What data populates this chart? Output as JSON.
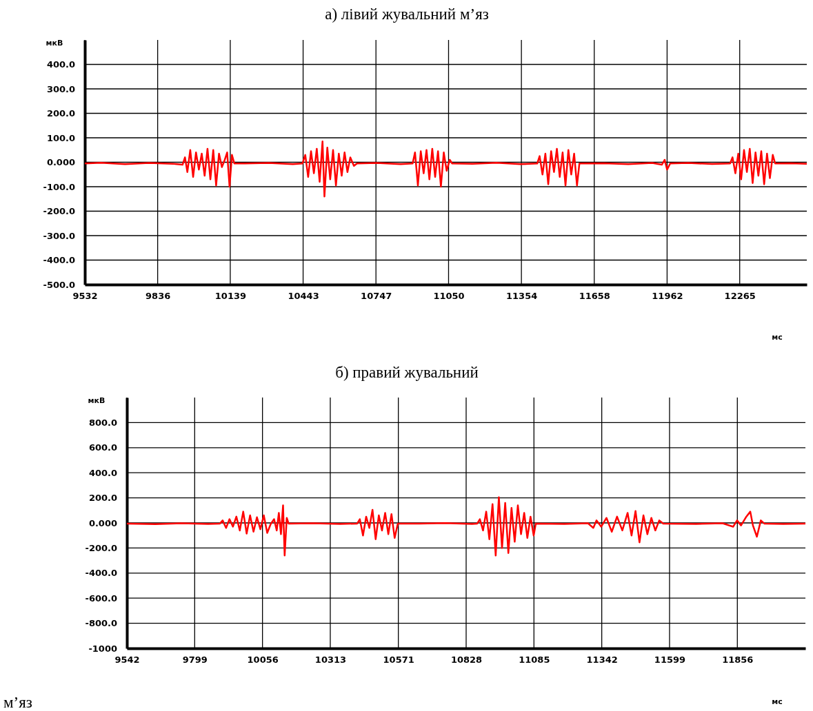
{
  "chart_data": [
    {
      "type": "line",
      "title": "а) лівий жувальний м’яз",
      "xlabel": "мс",
      "ylabel": "мкВ",
      "xlim": [
        9532,
        12545
      ],
      "ylim": [
        -500,
        500
      ],
      "xticks": [
        9532,
        9836,
        10139,
        10443,
        10747,
        11050,
        11354,
        11658,
        11962,
        12265
      ],
      "yticks": [
        {
          "value": 400,
          "label": "400.0"
        },
        {
          "value": 300,
          "label": "300.0"
        },
        {
          "value": 200,
          "label": "200.0"
        },
        {
          "value": 100,
          "label": "100.0"
        },
        {
          "value": 0,
          "label": "0.000"
        },
        {
          "value": -100,
          "label": "-100.0"
        },
        {
          "value": -200,
          "label": "-200.0"
        },
        {
          "value": -300,
          "label": "-300.0"
        },
        {
          "value": -400,
          "label": "-400.0"
        },
        {
          "value": -500,
          "label": "-500.0"
        }
      ],
      "grid": true,
      "series": [
        {
          "color": "#ff0000",
          "x": [
            9532,
            9600,
            9700,
            9800,
            9900,
            9940,
            9950,
            9960,
            9972,
            9984,
            9996,
            10008,
            10020,
            10032,
            10044,
            10056,
            10068,
            10080,
            10092,
            10104,
            10116,
            10126,
            10136,
            10146,
            10156,
            10200,
            10300,
            10400,
            10440,
            10452,
            10464,
            10476,
            10488,
            10500,
            10512,
            10524,
            10532,
            10544,
            10556,
            10568,
            10580,
            10592,
            10604,
            10616,
            10628,
            10640,
            10655,
            10668,
            10750,
            10850,
            10900,
            10910,
            10922,
            10934,
            10946,
            10958,
            10970,
            10982,
            10994,
            11006,
            11018,
            11030,
            11042,
            11055,
            11065,
            11150,
            11250,
            11350,
            11420,
            11430,
            11442,
            11454,
            11466,
            11478,
            11490,
            11502,
            11514,
            11526,
            11538,
            11550,
            11562,
            11574,
            11586,
            11596,
            11700,
            11800,
            11900,
            11940,
            11952,
            11962,
            11975,
            12050,
            12150,
            12225,
            12235,
            12247,
            12259,
            12271,
            12283,
            12295,
            12307,
            12319,
            12331,
            12343,
            12355,
            12367,
            12379,
            12391,
            12403,
            12413,
            12480,
            12545
          ],
          "values": [
            -5,
            -2,
            -8,
            -3,
            -6,
            -10,
            20,
            -40,
            50,
            -60,
            40,
            -30,
            35,
            -55,
            55,
            -70,
            50,
            -95,
            35,
            -20,
            10,
            40,
            -100,
            30,
            -5,
            -5,
            -3,
            -8,
            -5,
            30,
            -60,
            45,
            -45,
            55,
            -80,
            85,
            -140,
            60,
            -70,
            50,
            -95,
            35,
            -55,
            40,
            -40,
            20,
            -15,
            -5,
            -3,
            -8,
            -5,
            40,
            -95,
            45,
            -45,
            50,
            -70,
            55,
            -60,
            45,
            -100,
            40,
            -35,
            10,
            -5,
            -6,
            -2,
            -8,
            -5,
            25,
            -50,
            35,
            -90,
            45,
            -40,
            55,
            -60,
            40,
            -95,
            50,
            -50,
            35,
            -95,
            -5,
            -4,
            -8,
            -3,
            -10,
            10,
            -30,
            -5,
            -3,
            -7,
            -5,
            20,
            -45,
            35,
            -70,
            50,
            -40,
            55,
            -85,
            40,
            -55,
            45,
            -90,
            35,
            -65,
            30,
            -5,
            -4,
            -6
          ]
        }
      ]
    },
    {
      "type": "line",
      "title": "б) правий жувальний",
      "xlabel": "мс",
      "ylabel": "мкВ",
      "annotations": [
        "м’яз"
      ],
      "xlim": [
        9542,
        12114
      ],
      "ylim": [
        -1000,
        1000
      ],
      "xticks": [
        9542,
        9799,
        10056,
        10313,
        10571,
        10828,
        11085,
        11342,
        11599,
        11856
      ],
      "yticks": [
        {
          "value": 800,
          "label": "800.0"
        },
        {
          "value": 600,
          "label": "600.0"
        },
        {
          "value": 400,
          "label": "400.0"
        },
        {
          "value": 200,
          "label": "200.0"
        },
        {
          "value": 0,
          "label": "0.000"
        },
        {
          "value": -200,
          "label": "-200.0"
        },
        {
          "value": -400,
          "label": "-400.0"
        },
        {
          "value": -600,
          "label": "-600.0"
        },
        {
          "value": -800,
          "label": "-800.0"
        },
        -1000
      ],
      "grid": true,
      "series": [
        {
          "color": "#ff0000",
          "x": [
            9542,
            9650,
            9750,
            9850,
            9895,
            9905,
            9918,
            9931,
            9944,
            9957,
            9970,
            9983,
            9996,
            10009,
            10022,
            10035,
            10048,
            10061,
            10074,
            10087,
            10100,
            10110,
            10118,
            10126,
            10134,
            10140,
            10148,
            10155,
            10250,
            10350,
            10415,
            10425,
            10437,
            10449,
            10461,
            10473,
            10485,
            10497,
            10509,
            10521,
            10533,
            10545,
            10557,
            10569,
            10650,
            10750,
            10850,
            10870,
            10880,
            10892,
            10904,
            10916,
            10928,
            10940,
            10952,
            10964,
            10976,
            10988,
            11000,
            11012,
            11024,
            11036,
            11048,
            11060,
            11072,
            11084,
            11092,
            11200,
            11290,
            11310,
            11322,
            11340,
            11360,
            11380,
            11400,
            11420,
            11440,
            11455,
            11470,
            11485,
            11500,
            11515,
            11530,
            11545,
            11560,
            11575,
            11700,
            11800,
            11840,
            11855,
            11870,
            11890,
            11905,
            11915,
            11930,
            11945,
            11958,
            12030,
            12114
          ],
          "values": [
            -5,
            -10,
            -3,
            -8,
            -5,
            20,
            -40,
            30,
            -30,
            50,
            -60,
            90,
            -85,
            60,
            -70,
            45,
            -50,
            60,
            -80,
            -10,
            30,
            -60,
            80,
            -90,
            140,
            -260,
            40,
            -5,
            -3,
            -8,
            -5,
            30,
            -100,
            50,
            -40,
            105,
            -130,
            60,
            -60,
            80,
            -90,
            70,
            -120,
            -5,
            -6,
            -2,
            -8,
            -5,
            30,
            -60,
            90,
            -130,
            150,
            -260,
            205,
            -200,
            160,
            -240,
            120,
            -150,
            140,
            -90,
            80,
            -120,
            50,
            -100,
            -5,
            -8,
            -3,
            -40,
            20,
            -30,
            40,
            -70,
            50,
            -60,
            80,
            -100,
            95,
            -155,
            60,
            -90,
            40,
            -60,
            20,
            -5,
            -8,
            -3,
            -30,
            20,
            -20,
            50,
            90,
            -20,
            -110,
            20,
            -5,
            -8,
            -5
          ]
        }
      ]
    }
  ]
}
